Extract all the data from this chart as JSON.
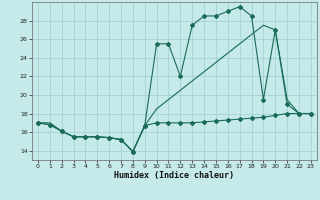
{
  "xlabel": "Humidex (Indice chaleur)",
  "xlim": [
    -0.5,
    23.5
  ],
  "ylim": [
    13.0,
    30.0
  ],
  "yticks": [
    14,
    16,
    18,
    20,
    22,
    24,
    26,
    28
  ],
  "xticks": [
    0,
    1,
    2,
    3,
    4,
    5,
    6,
    7,
    8,
    9,
    10,
    11,
    12,
    13,
    14,
    15,
    16,
    17,
    18,
    19,
    20,
    21,
    22,
    23
  ],
  "background_color": "#c6e9e9",
  "grid_color": "#9dcece",
  "line_color": "#1a6b5a",
  "line1_x": [
    0,
    1,
    2,
    3,
    4,
    5,
    6,
    7,
    8,
    9,
    10,
    11,
    12,
    13,
    14,
    15,
    16,
    17,
    18,
    19,
    20,
    21,
    22,
    23
  ],
  "line1_y": [
    17.0,
    16.8,
    16.1,
    15.5,
    15.5,
    15.5,
    15.4,
    15.2,
    13.9,
    16.7,
    17.0,
    17.0,
    17.0,
    17.0,
    17.1,
    17.2,
    17.3,
    17.4,
    17.5,
    17.6,
    17.8,
    18.0,
    18.0,
    18.0
  ],
  "line2_x": [
    0,
    1,
    2,
    3,
    4,
    5,
    6,
    7,
    8,
    9,
    10,
    11,
    12,
    13,
    14,
    15,
    16,
    17,
    18,
    19,
    20,
    21,
    22,
    23
  ],
  "line2_y": [
    17.0,
    16.8,
    16.1,
    15.5,
    15.5,
    15.5,
    15.4,
    15.2,
    13.9,
    16.7,
    25.5,
    25.5,
    22.0,
    27.5,
    28.5,
    28.5,
    29.0,
    29.5,
    28.5,
    19.5,
    27.0,
    19.0,
    18.0,
    18.0
  ],
  "line3_x": [
    0,
    1,
    2,
    3,
    4,
    5,
    6,
    7,
    8,
    9,
    10,
    11,
    12,
    13,
    14,
    15,
    16,
    17,
    18,
    19,
    20,
    21,
    22,
    23
  ],
  "line3_y": [
    17.0,
    17.0,
    16.1,
    15.5,
    15.5,
    15.5,
    15.4,
    15.2,
    13.9,
    16.7,
    18.5,
    19.5,
    20.5,
    21.5,
    22.5,
    23.5,
    24.5,
    25.5,
    26.5,
    27.5,
    27.0,
    19.5,
    18.0,
    18.0
  ]
}
